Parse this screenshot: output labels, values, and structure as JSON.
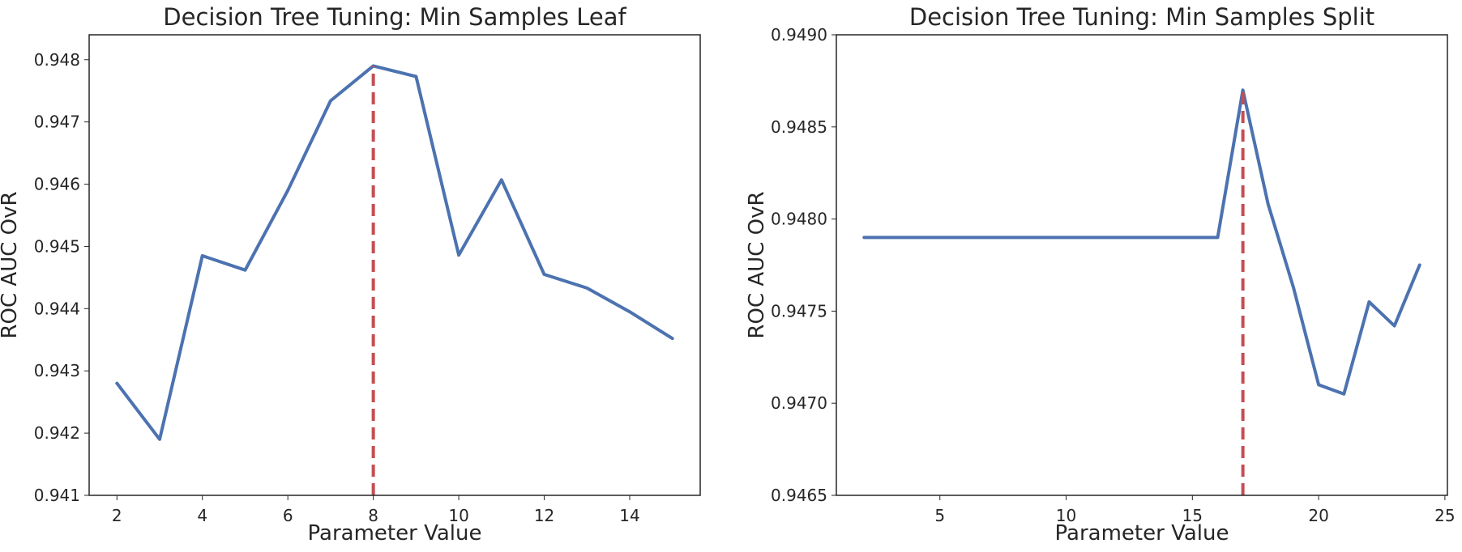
{
  "chart_data": [
    {
      "type": "line",
      "title": "Decision Tree Tuning: Min Samples Leaf",
      "xlabel": "Parameter Value",
      "ylabel": "ROC AUC OvR",
      "xlim": [
        1.35,
        15.65
      ],
      "ylim": [
        0.941,
        0.9484
      ],
      "xticks": [
        2,
        4,
        6,
        8,
        10,
        12,
        14
      ],
      "yticks": [
        0.941,
        0.942,
        0.943,
        0.944,
        0.945,
        0.946,
        0.947,
        0.948
      ],
      "ytick_decimals": 3,
      "grid": false,
      "series": [
        {
          "color": "#4c72b0",
          "x": [
            2,
            3,
            4,
            5,
            6,
            7,
            8,
            9,
            10,
            11,
            12,
            13,
            14,
            15
          ],
          "values": [
            0.9428,
            0.9419,
            0.94485,
            0.94462,
            0.9459,
            0.94734,
            0.9479,
            0.94773,
            0.94486,
            0.94607,
            0.94455,
            0.94433,
            0.94395,
            0.94352
          ]
        }
      ],
      "vline": {
        "x": 8,
        "color": "#c44e52",
        "style": "dashed"
      }
    },
    {
      "type": "line",
      "title": "Decision Tree Tuning: Min Samples Split",
      "xlabel": "Parameter Value",
      "ylabel": "ROC AUC OvR",
      "xlim": [
        0.9,
        25.1
      ],
      "ylim": [
        0.9465,
        0.949
      ],
      "xticks": [
        5,
        10,
        15,
        20,
        25
      ],
      "yticks": [
        0.9465,
        0.947,
        0.9475,
        0.948,
        0.9485,
        0.949
      ],
      "ytick_decimals": 4,
      "grid": false,
      "series": [
        {
          "color": "#4c72b0",
          "x": [
            2,
            3,
            4,
            5,
            6,
            7,
            8,
            9,
            10,
            11,
            12,
            13,
            14,
            15,
            16,
            17,
            18,
            19,
            20,
            21,
            22,
            23,
            24
          ],
          "values": [
            0.9479,
            0.9479,
            0.9479,
            0.9479,
            0.9479,
            0.9479,
            0.9479,
            0.9479,
            0.9479,
            0.9479,
            0.9479,
            0.9479,
            0.9479,
            0.9479,
            0.9479,
            0.9487,
            0.94808,
            0.94763,
            0.9471,
            0.94705,
            0.94755,
            0.94742,
            0.94775
          ]
        }
      ],
      "vline": {
        "x": 17,
        "color": "#c44e52",
        "style": "dashed"
      }
    }
  ]
}
